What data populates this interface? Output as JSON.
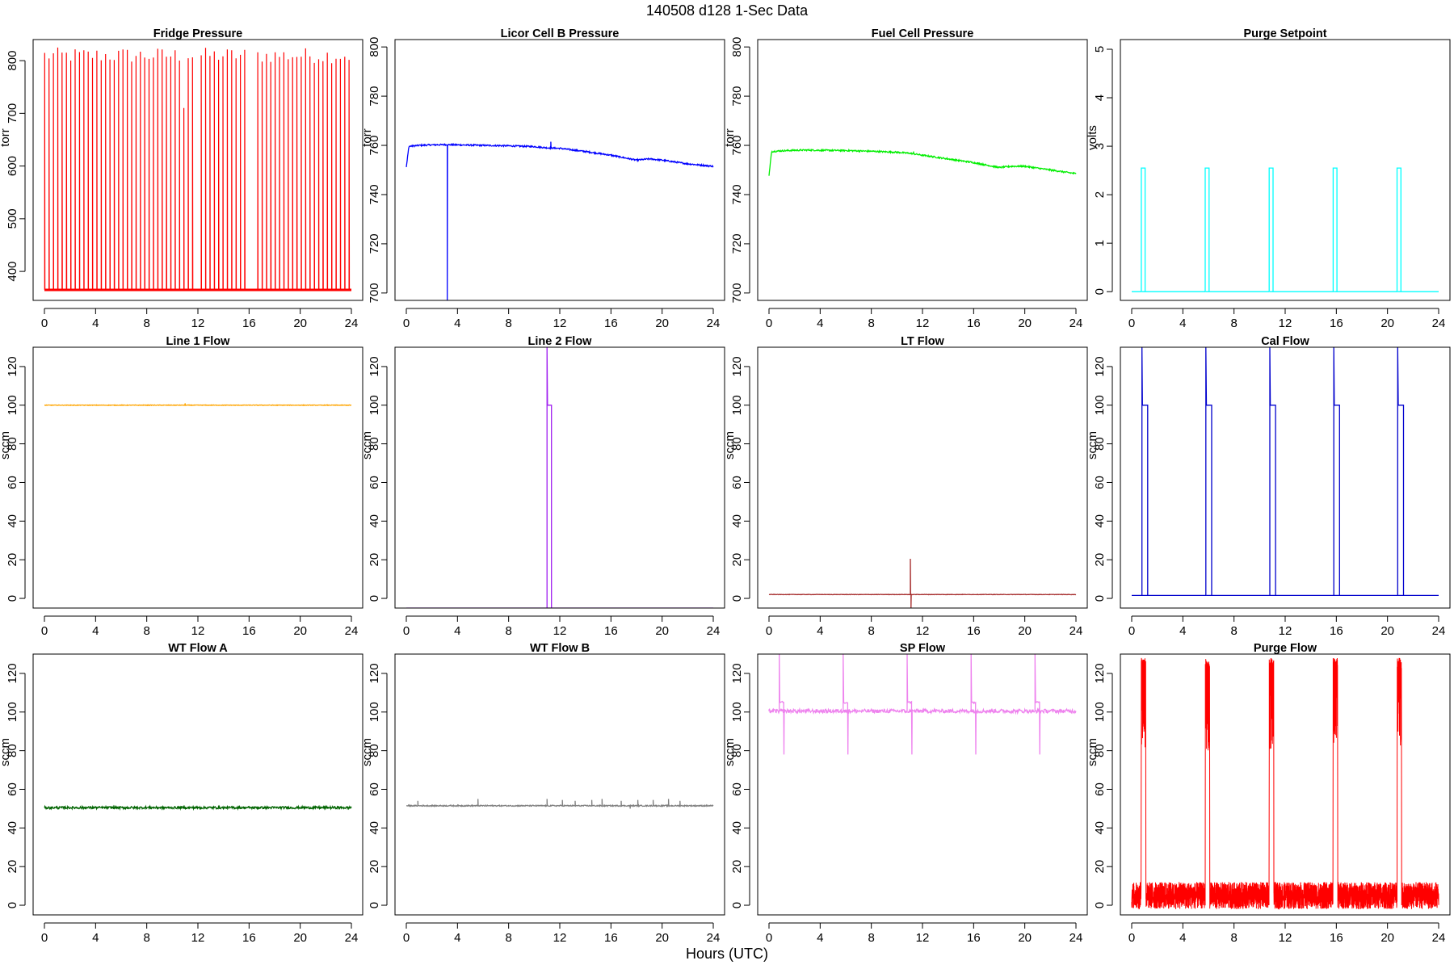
{
  "page": {
    "title": "140508   d128   1-Sec Data",
    "xlabel": "Hours (UTC)"
  },
  "chart_data": [
    {
      "type": "line",
      "title": "Fridge Pressure",
      "ylabel": "torr",
      "color": "#ff0000",
      "xlim": [
        0,
        24
      ],
      "ylim": [
        345,
        840
      ],
      "xticks": [
        0,
        4,
        8,
        12,
        16,
        20,
        24
      ],
      "yticks": [
        400,
        500,
        600,
        700,
        800
      ],
      "pattern": "fridge_cycles",
      "series": [
        {
          "baseline": 365,
          "peak_min": 795,
          "peak_max": 825,
          "cycle_hours": 0.34,
          "gaps": [
            [
              11.9,
              12.1
            ],
            [
              15.8,
              16.5
            ]
          ],
          "low_spike": [
            [
              11.0,
              710
            ]
          ]
        }
      ]
    },
    {
      "type": "line",
      "title": "Licor Cell B Pressure",
      "ylabel": "torr",
      "color": "#0000ff",
      "xlim": [
        0,
        24
      ],
      "ylim": [
        697,
        803
      ],
      "xticks": [
        0,
        4,
        8,
        12,
        16,
        20,
        24
      ],
      "yticks": [
        700,
        720,
        740,
        760,
        780,
        800
      ],
      "pattern": "trace",
      "series": [
        {
          "x": [
            0,
            0.2,
            1,
            2,
            3,
            4,
            6,
            8,
            10,
            11,
            12,
            14,
            16,
            17,
            18,
            19,
            20,
            22,
            24
          ],
          "y": [
            751,
            759.6,
            760,
            760.2,
            760.3,
            760.2,
            760,
            759.8,
            759.5,
            759,
            758.8,
            757.5,
            756,
            755,
            754,
            754.5,
            754,
            752.5,
            751.5
          ],
          "spikes": [
            [
              3.2,
              697
            ],
            [
              11.3,
              761.5
            ]
          ],
          "noise": 0.3
        }
      ]
    },
    {
      "type": "line",
      "title": "Fuel Cell Pressure",
      "ylabel": "torr",
      "color": "#00ee00",
      "xlim": [
        0,
        24
      ],
      "ylim": [
        697,
        803
      ],
      "xticks": [
        0,
        4,
        8,
        12,
        16,
        20,
        24
      ],
      "yticks": [
        700,
        720,
        740,
        760,
        780,
        800
      ],
      "pattern": "trace",
      "series": [
        {
          "x": [
            0,
            0.2,
            1,
            2,
            3,
            4,
            6,
            8,
            10,
            11,
            12,
            14,
            16,
            17,
            18,
            19,
            20,
            22,
            24
          ],
          "y": [
            747.5,
            757.5,
            757.8,
            758,
            758.1,
            758,
            757.9,
            757.6,
            757.2,
            756.8,
            756,
            754.5,
            753,
            752,
            751,
            751.5,
            751.5,
            750,
            748.5
          ],
          "spikes": [
            [
              11.3,
              757.5
            ]
          ],
          "noise": 0.3
        }
      ]
    },
    {
      "type": "line",
      "title": "Purge Setpoint",
      "ylabel": "volts",
      "color": "#00ffff",
      "xlim": [
        0,
        24
      ],
      "ylim": [
        -0.18,
        5.2
      ],
      "xticks": [
        0,
        4,
        8,
        12,
        16,
        20,
        24
      ],
      "yticks": [
        0,
        1,
        2,
        3,
        4,
        5
      ],
      "pattern": "pulses",
      "series": [
        {
          "baseline": 0,
          "level": 2.55,
          "pulse_starts": [
            0.75,
            5.75,
            10.75,
            15.75,
            20.75
          ],
          "pulse_width": 0.3,
          "overshoot": 0,
          "post_level": 0,
          "post_width": 0
        }
      ]
    },
    {
      "type": "line",
      "title": "Line 1 Flow",
      "ylabel": "sccm",
      "color": "#ffa500",
      "xlim": [
        0,
        24
      ],
      "ylim": [
        -5,
        130
      ],
      "xticks": [
        0,
        4,
        8,
        12,
        16,
        20,
        24
      ],
      "yticks": [
        0,
        20,
        40,
        60,
        80,
        100,
        120
      ],
      "pattern": "trace",
      "series": [
        {
          "x": [
            0,
            24
          ],
          "y": [
            100,
            100
          ],
          "spikes": [
            [
              11,
              101
            ]
          ],
          "noise": 0.15
        }
      ]
    },
    {
      "type": "line",
      "title": "Line 2 Flow",
      "ylabel": "sccm",
      "color": "#a020f0",
      "xlim": [
        0,
        24
      ],
      "ylim": [
        -5,
        130
      ],
      "xticks": [
        0,
        4,
        8,
        12,
        16,
        20,
        24
      ],
      "yticks": [
        0,
        20,
        40,
        60,
        80,
        100,
        120
      ],
      "pattern": "pulses",
      "series": [
        {
          "baseline": -5,
          "level": 100,
          "pulse_starts": [
            11.0
          ],
          "pulse_width": 0.35,
          "overshoot": 130,
          "post_level": 0,
          "post_width": 0
        }
      ]
    },
    {
      "type": "line",
      "title": "LT Flow",
      "ylabel": "sccm",
      "color": "#a52a2a",
      "xlim": [
        0,
        24
      ],
      "ylim": [
        -5,
        130
      ],
      "xticks": [
        0,
        4,
        8,
        12,
        16,
        20,
        24
      ],
      "yticks": [
        0,
        20,
        40,
        60,
        80,
        100,
        120
      ],
      "pattern": "trace",
      "series": [
        {
          "x": [
            0,
            24
          ],
          "y": [
            2,
            2
          ],
          "spikes": [
            [
              11.05,
              20.5
            ],
            [
              11.1,
              -5
            ]
          ],
          "noise": 0.1
        }
      ]
    },
    {
      "type": "line",
      "title": "Cal Flow",
      "ylabel": "sccm",
      "color": "#0000cd",
      "xlim": [
        0,
        24
      ],
      "ylim": [
        -5,
        130
      ],
      "xticks": [
        0,
        4,
        8,
        12,
        16,
        20,
        24
      ],
      "yticks": [
        0,
        20,
        40,
        60,
        80,
        100,
        120
      ],
      "pattern": "pulses",
      "series": [
        {
          "baseline": 1.5,
          "level": 100,
          "pulse_starts": [
            0.8,
            5.8,
            10.8,
            15.8,
            20.8
          ],
          "pulse_width": 0.45,
          "overshoot": 130,
          "post_level": 0,
          "post_width": 0
        }
      ]
    },
    {
      "type": "line",
      "title": "WT Flow A",
      "ylabel": "sccm",
      "color": "#006400",
      "xlim": [
        0,
        24
      ],
      "ylim": [
        -5,
        130
      ],
      "xticks": [
        0,
        4,
        8,
        12,
        16,
        20,
        24
      ],
      "yticks": [
        0,
        20,
        40,
        60,
        80,
        100,
        120
      ],
      "pattern": "trace",
      "series": [
        {
          "x": [
            0,
            24
          ],
          "y": [
            50.5,
            50.5
          ],
          "spikes": [],
          "noise": 0.6
        }
      ]
    },
    {
      "type": "line",
      "title": "WT Flow B",
      "ylabel": "sccm",
      "color": "#808080",
      "xlim": [
        0,
        24
      ],
      "ylim": [
        -5,
        130
      ],
      "xticks": [
        0,
        4,
        8,
        12,
        16,
        20,
        24
      ],
      "yticks": [
        0,
        20,
        40,
        60,
        80,
        100,
        120
      ],
      "pattern": "trace",
      "series": [
        {
          "x": [
            0,
            24
          ],
          "y": [
            51.5,
            51.5
          ],
          "spikes": [
            [
              0.9,
              54
            ],
            [
              5.6,
              55
            ],
            [
              11,
              55
            ],
            [
              12.2,
              54.5
            ],
            [
              13.2,
              54
            ],
            [
              14.5,
              54.5
            ],
            [
              15.3,
              55
            ],
            [
              16.8,
              54
            ],
            [
              17.5,
              50
            ],
            [
              18.1,
              54.5
            ],
            [
              19.3,
              54.5
            ],
            [
              20.5,
              55
            ],
            [
              21.4,
              54
            ]
          ],
          "noise": 0.3
        }
      ]
    },
    {
      "type": "line",
      "title": "SP Flow",
      "ylabel": "sccm",
      "color": "#ee82ee",
      "xlim": [
        0,
        24
      ],
      "ylim": [
        -5,
        130
      ],
      "xticks": [
        0,
        4,
        8,
        12,
        16,
        20,
        24
      ],
      "yticks": [
        0,
        20,
        40,
        60,
        80,
        100,
        120
      ],
      "pattern": "pulses",
      "series": [
        {
          "baseline": 100.5,
          "level": 105,
          "pulse_starts": [
            0.8,
            5.8,
            10.8,
            15.8,
            20.8
          ],
          "pulse_width": 0.35,
          "overshoot": 130,
          "post_level": 78,
          "post_width": 0.1,
          "noise": 1.0
        }
      ]
    },
    {
      "type": "line",
      "title": "Purge Flow",
      "ylabel": "sccm",
      "color": "#ff0000",
      "xlim": [
        0,
        24
      ],
      "ylim": [
        -5,
        130
      ],
      "xticks": [
        0,
        4,
        8,
        12,
        16,
        20,
        24
      ],
      "yticks": [
        0,
        20,
        40,
        60,
        80,
        100,
        120
      ],
      "pattern": "noise_band",
      "series": [
        {
          "band_low": -2,
          "band_high": 12,
          "pulse_starts": [
            0.75,
            5.75,
            10.75,
            15.75,
            20.75
          ],
          "pulse_width": 0.35,
          "pulse_min": 80,
          "pulse_max": 128
        }
      ]
    }
  ]
}
